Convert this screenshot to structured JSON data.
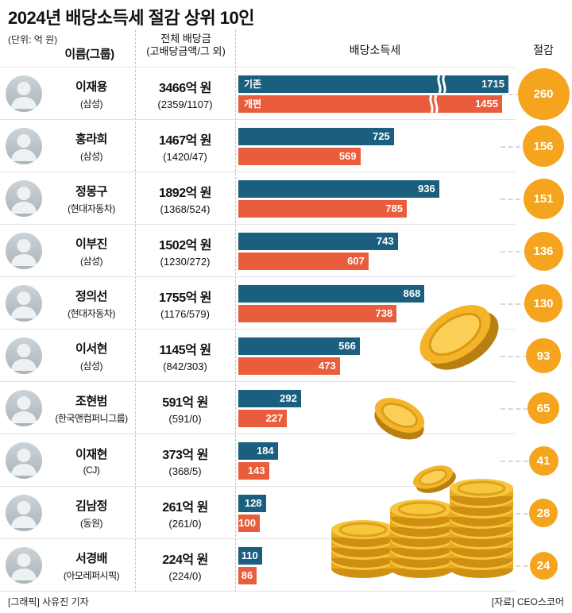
{
  "title": "2024년 배당소득세 절감 상위 10인",
  "unit_label": "(단위: 억 원)",
  "header": {
    "name_col": "이름(그룹)",
    "dividend_col_line1": "전체 배당금",
    "dividend_col_line2": "(고배당금액/그 외)",
    "tax_col": "배당소득세",
    "saving_col": "절감"
  },
  "legend": {
    "existing": "기존",
    "reformed": "개편"
  },
  "colors": {
    "existing_bar": "#1a5f7e",
    "reformed_bar": "#e95c3c",
    "saving_circle": "#f5a41e",
    "coin_gold": "#f6c63d"
  },
  "icons": {
    "avatar": "person-icon",
    "axis_break": "axis-break-icon",
    "decoration": "gold-coins-illustration"
  },
  "footer": {
    "credit_left": "[그래픽] 사유진 기자",
    "credit_right": "[자료] CEO스코어"
  },
  "chart_data": {
    "type": "bar",
    "orientation": "horizontal",
    "unit": "억 원",
    "title": "2024년 배당소득세 절감 상위 10인",
    "series_labels": [
      "기존",
      "개편"
    ],
    "note": "first row drawn with axis break marks",
    "rows": [
      {
        "rank": 1,
        "name": "이재용",
        "group": "(삼성)",
        "total": "3466억 원",
        "breakdown": "(2359/1107)",
        "existing": 1715,
        "reformed": 1455,
        "saving": 260,
        "axis_break": true
      },
      {
        "rank": 2,
        "name": "홍라희",
        "group": "(삼성)",
        "total": "1467억 원",
        "breakdown": "(1420/47)",
        "existing": 725,
        "reformed": 569,
        "saving": 156
      },
      {
        "rank": 3,
        "name": "정몽구",
        "group": "(현대자동차)",
        "total": "1892억 원",
        "breakdown": "(1368/524)",
        "existing": 936,
        "reformed": 785,
        "saving": 151
      },
      {
        "rank": 4,
        "name": "이부진",
        "group": "(삼성)",
        "total": "1502억 원",
        "breakdown": "(1230/272)",
        "existing": 743,
        "reformed": 607,
        "saving": 136
      },
      {
        "rank": 5,
        "name": "정의선",
        "group": "(현대자동차)",
        "total": "1755억 원",
        "breakdown": "(1176/579)",
        "existing": 868,
        "reformed": 738,
        "saving": 130
      },
      {
        "rank": 6,
        "name": "이서현",
        "group": "(삼성)",
        "total": "1145억 원",
        "breakdown": "(842/303)",
        "existing": 566,
        "reformed": 473,
        "saving": 93
      },
      {
        "rank": 7,
        "name": "조현범",
        "group": "(한국앤컴퍼니그룹)",
        "total": "591억 원",
        "breakdown": "(591/0)",
        "existing": 292,
        "reformed": 227,
        "saving": 65
      },
      {
        "rank": 8,
        "name": "이재현",
        "group": "(CJ)",
        "total": "373억 원",
        "breakdown": "(368/5)",
        "existing": 184,
        "reformed": 143,
        "saving": 41
      },
      {
        "rank": 9,
        "name": "김남정",
        "group": "(동원)",
        "total": "261억 원",
        "breakdown": "(261/0)",
        "existing": 128,
        "reformed": 100,
        "saving": 28
      },
      {
        "rank": 10,
        "name": "서경배",
        "group": "(아모레퍼시픽)",
        "total": "224억 원",
        "breakdown": "(224/0)",
        "existing": 110,
        "reformed": 86,
        "saving": 24
      }
    ]
  }
}
